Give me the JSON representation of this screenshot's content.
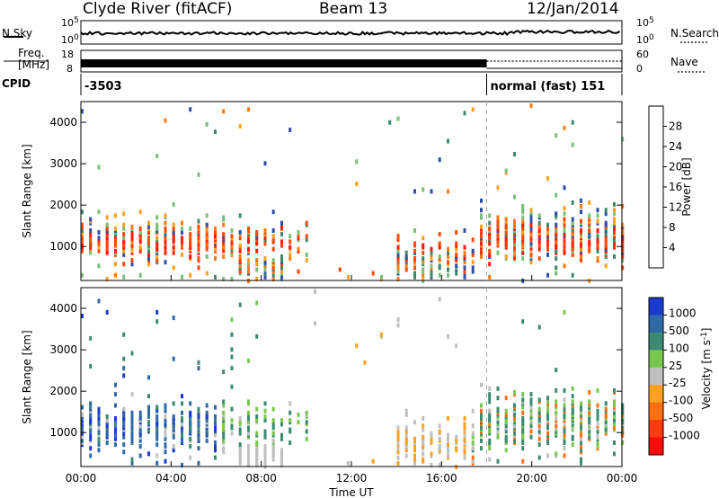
{
  "header": {
    "station": "Clyde River (fitACF)",
    "beam": "Beam 13",
    "date": "12/Jan/2014"
  },
  "panel_labels": {
    "nsky": "N.Sky",
    "nsearch": "N.Search",
    "freq_line1": "Freq.",
    "freq_line2": "[MHz]",
    "nave": "Nave",
    "cpid": "CPID"
  },
  "chart_data": [
    {
      "type": "line",
      "name": "noise",
      "left_axis_ticks": [
        "10^5",
        "10^0"
      ],
      "right_axis_ticks": [
        "10^5",
        "10^0"
      ],
      "legend": [
        "N.Sky",
        "N.Search"
      ]
    },
    {
      "type": "line",
      "name": "freq-nave",
      "left_axis_ticks": [
        "18",
        "8"
      ],
      "right_axis_ticks": [
        "60",
        "0"
      ],
      "legend": [
        "Freq. [MHz]",
        "Nave"
      ]
    },
    {
      "type": "table",
      "name": "cpid",
      "segments": [
        {
          "start_hour": 0,
          "end_hour": 18,
          "label": "-3503"
        },
        {
          "start_hour": 18,
          "end_hour": 24,
          "label": "normal (fast) 151"
        }
      ]
    },
    {
      "type": "heatmap",
      "name": "power",
      "ylabel": "Slant Range [km]",
      "y_ticks": [
        1000,
        2000,
        3000,
        4000
      ],
      "ylim": [
        180,
        4500
      ],
      "colorbar_label": "Power [dB]",
      "colorbar_ticks": [
        4,
        8,
        12,
        16,
        20,
        24,
        28
      ],
      "colorbar_range": [
        0,
        32
      ],
      "colors": [
        "#1a1aff",
        "#2e50a8",
        "#3d8a6a",
        "#78c078",
        "#ffa01e",
        "#ff7a10",
        "#ff4a0a",
        "#ff1a0a"
      ]
    },
    {
      "type": "heatmap",
      "name": "velocity",
      "ylabel": "Slant Range [km]",
      "y_ticks": [
        1000,
        2000,
        3000,
        4000
      ],
      "ylim": [
        180,
        4500
      ],
      "colorbar_label": "Velocity [m s^-1]",
      "colorbar_ticks": [
        1000,
        500,
        100,
        25,
        -25,
        -100,
        -500,
        -1000
      ],
      "colors": [
        "#1a3ad0",
        "#2e6aa8",
        "#3b8a72",
        "#78c850",
        "#c0c0c0",
        "#ffa020",
        "#ff7010",
        "#ff3a10",
        "#ff0a0a"
      ]
    },
    {
      "type": "scatter",
      "name": "time-axis",
      "xlabel": "Time UT",
      "x_ticks": [
        "00:00",
        "04:00",
        "08:00",
        "12:00",
        "16:00",
        "20:00",
        "00:00"
      ],
      "xlim": [
        0,
        24
      ]
    }
  ]
}
